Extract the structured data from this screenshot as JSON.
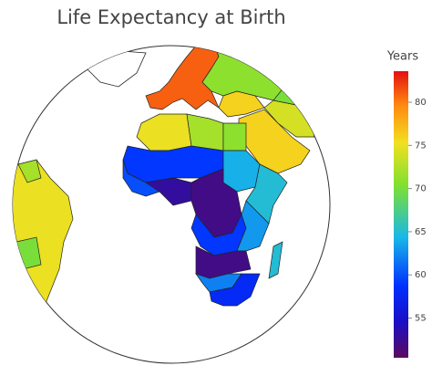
{
  "chart_data": {
    "type": "choropleth",
    "title": "Life Expectancy at Birth",
    "projection": "orthographic",
    "values": [
      81,
      71,
      76,
      76,
      74,
      62,
      70,
      75,
      72,
      71,
      59,
      64,
      65,
      60,
      53,
      52,
      59,
      63,
      52,
      62,
      58,
      65,
      75,
      70,
      72,
      79
    ],
    "colorbar": {
      "title": "Years",
      "zlim": [
        50.4,
        83.6
      ],
      "ticks": [
        55,
        60,
        65,
        70,
        75,
        80
      ],
      "colorscale": [
        [
          0,
          "#5a0a5f"
        ],
        [
          0.13,
          "#1a10c8"
        ],
        [
          0.25,
          "#0030ff"
        ],
        [
          0.42,
          "#18b8e8"
        ],
        [
          0.6,
          "#7ee030"
        ],
        [
          0.75,
          "#f2e020"
        ],
        [
          0.88,
          "#ff8a10"
        ],
        [
          1,
          "#e41010"
        ]
      ]
    }
  }
}
